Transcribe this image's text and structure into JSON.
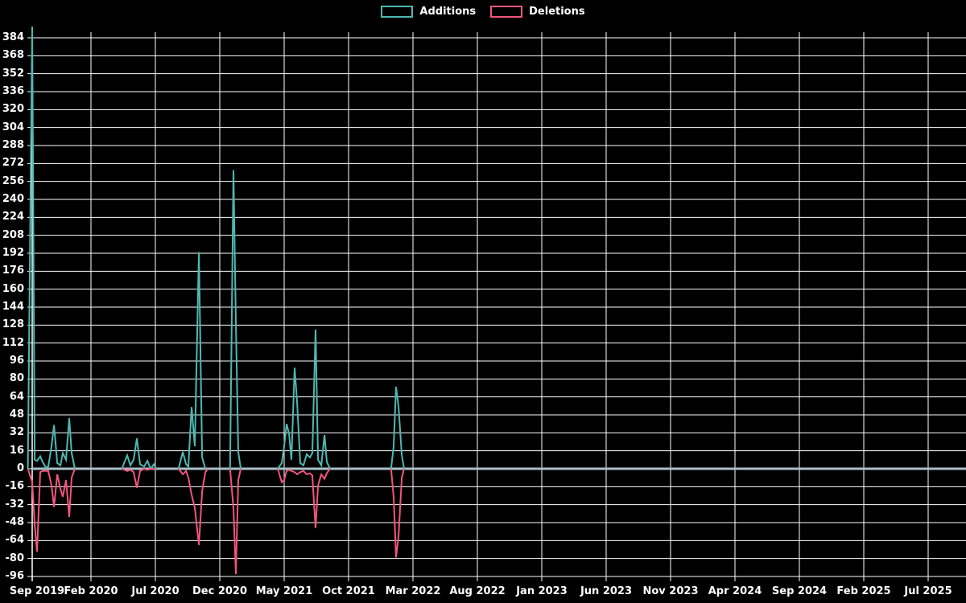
{
  "legend": {
    "additions_label": "Additions",
    "deletions_label": "Deletions"
  },
  "colors": {
    "background": "#000000",
    "grid": "#ffffff",
    "axis": "#ffffff",
    "zero_line": "#a9bfc7",
    "text": "#ffffff",
    "additions": "#4db8b2",
    "deletions": "#f2557a"
  },
  "chart_data": {
    "type": "line",
    "title": "",
    "xlabel": "",
    "ylabel": "",
    "legend_position": "top-center",
    "grid": true,
    "x_unit": "months since Sep 2019",
    "ylim": [
      -96,
      384
    ],
    "y_tick_step": 16,
    "y_ticks": [
      384,
      368,
      352,
      336,
      320,
      304,
      288,
      272,
      256,
      240,
      224,
      208,
      192,
      176,
      160,
      144,
      128,
      112,
      96,
      80,
      64,
      48,
      32,
      16,
      0,
      -16,
      -32,
      -48,
      -64,
      -80,
      -96
    ],
    "x_ticks": [
      "Sep 2019",
      "Feb 2020",
      "Jul 2020",
      "Dec 2020",
      "May 2021",
      "Oct 2021",
      "Mar 2022",
      "Aug 2022",
      "Jan 2023",
      "Jun 2023",
      "Nov 2023",
      "Apr 2024",
      "Sep 2024",
      "Feb 2025",
      "Jul 2025"
    ],
    "x_tick_month_interval": 5,
    "series": [
      {
        "name": "Additions",
        "color": "#4db8b2",
        "segments": [
          [
            [
              0.1,
              0
            ],
            [
              0.44,
              394
            ],
            [
              0.63,
              8
            ],
            [
              0.81,
              7
            ],
            [
              1.06,
              11
            ],
            [
              1.25,
              6
            ],
            [
              1.5,
              1
            ],
            [
              1.69,
              2
            ],
            [
              1.94,
              20
            ],
            [
              2.13,
              39
            ],
            [
              2.38,
              5
            ],
            [
              2.63,
              3
            ],
            [
              2.81,
              14
            ],
            [
              3.06,
              8
            ],
            [
              3.31,
              45
            ],
            [
              3.5,
              14
            ],
            [
              3.75,
              0
            ]
          ],
          [
            [
              7.4,
              0
            ],
            [
              7.81,
              12
            ],
            [
              8.06,
              3
            ],
            [
              8.31,
              8
            ],
            [
              8.56,
              27
            ],
            [
              8.81,
              4
            ],
            [
              9.13,
              2
            ],
            [
              9.38,
              7
            ],
            [
              9.63,
              0
            ],
            [
              9.88,
              4
            ],
            [
              10.06,
              0
            ]
          ],
          [
            [
              11.8,
              0
            ],
            [
              12.13,
              15
            ],
            [
              12.38,
              4
            ],
            [
              12.56,
              2
            ],
            [
              12.81,
              55
            ],
            [
              13.06,
              20
            ],
            [
              13.38,
              193
            ],
            [
              13.63,
              10
            ],
            [
              13.88,
              0
            ]
          ],
          [
            [
              15.8,
              0
            ],
            [
              16.06,
              266
            ],
            [
              16.25,
              130
            ],
            [
              16.44,
              15
            ],
            [
              16.63,
              0
            ]
          ],
          [
            [
              19.5,
              0
            ],
            [
              19.81,
              5
            ],
            [
              20.0,
              20
            ],
            [
              20.19,
              40
            ],
            [
              20.38,
              31
            ],
            [
              20.56,
              8
            ],
            [
              20.81,
              90
            ],
            [
              21.0,
              60
            ],
            [
              21.25,
              5
            ],
            [
              21.5,
              3
            ],
            [
              21.75,
              13
            ],
            [
              22.0,
              10
            ],
            [
              22.19,
              14
            ],
            [
              22.44,
              124
            ],
            [
              22.63,
              8
            ],
            [
              22.88,
              3
            ],
            [
              23.13,
              30
            ],
            [
              23.31,
              6
            ],
            [
              23.56,
              0
            ]
          ],
          [
            [
              28.3,
              0
            ],
            [
              28.5,
              20
            ],
            [
              28.69,
              73
            ],
            [
              28.88,
              55
            ],
            [
              29.13,
              12
            ],
            [
              29.31,
              0
            ]
          ]
        ]
      },
      {
        "name": "Deletions",
        "color": "#f2557a",
        "segments": [
          [
            [
              0.1,
              0
            ],
            [
              0.44,
              -12
            ],
            [
              0.63,
              -50
            ],
            [
              0.81,
              -74
            ],
            [
              1.06,
              -3
            ],
            [
              1.25,
              -2
            ],
            [
              1.5,
              -2
            ],
            [
              1.69,
              -2
            ],
            [
              1.94,
              -15
            ],
            [
              2.13,
              -34
            ],
            [
              2.38,
              -5
            ],
            [
              2.63,
              -18
            ],
            [
              2.81,
              -25
            ],
            [
              3.06,
              -10
            ],
            [
              3.31,
              -43
            ],
            [
              3.5,
              -8
            ],
            [
              3.75,
              0
            ]
          ],
          [
            [
              7.4,
              0
            ],
            [
              7.81,
              -2
            ],
            [
              8.06,
              -1
            ],
            [
              8.31,
              -3
            ],
            [
              8.56,
              -17
            ],
            [
              8.81,
              -2
            ],
            [
              9.13,
              0
            ],
            [
              9.38,
              -1
            ],
            [
              9.63,
              0
            ],
            [
              9.88,
              0
            ],
            [
              10.06,
              0
            ]
          ],
          [
            [
              11.8,
              0
            ],
            [
              12.13,
              -5
            ],
            [
              12.38,
              -2
            ],
            [
              12.56,
              -8
            ],
            [
              12.81,
              -23
            ],
            [
              13.06,
              -35
            ],
            [
              13.38,
              -68
            ],
            [
              13.63,
              -20
            ],
            [
              13.88,
              -3
            ],
            [
              14.1,
              0
            ]
          ],
          [
            [
              15.8,
              0
            ],
            [
              16.06,
              -35
            ],
            [
              16.25,
              -94
            ],
            [
              16.44,
              -10
            ],
            [
              16.63,
              0
            ]
          ],
          [
            [
              19.5,
              0
            ],
            [
              19.81,
              -12
            ],
            [
              20.0,
              -10
            ],
            [
              20.19,
              -2
            ],
            [
              20.38,
              -1
            ],
            [
              20.56,
              -2
            ],
            [
              20.81,
              -3
            ],
            [
              21.0,
              -5
            ],
            [
              21.25,
              -3
            ],
            [
              21.5,
              -2
            ],
            [
              21.75,
              -5
            ],
            [
              22.0,
              -4
            ],
            [
              22.19,
              -6
            ],
            [
              22.44,
              -53
            ],
            [
              22.63,
              -15
            ],
            [
              22.88,
              -5
            ],
            [
              23.13,
              -9
            ],
            [
              23.31,
              -4
            ],
            [
              23.56,
              0
            ]
          ],
          [
            [
              28.3,
              0
            ],
            [
              28.5,
              -25
            ],
            [
              28.69,
              -79
            ],
            [
              28.88,
              -60
            ],
            [
              29.13,
              -8
            ],
            [
              29.31,
              0
            ]
          ]
        ]
      }
    ]
  }
}
